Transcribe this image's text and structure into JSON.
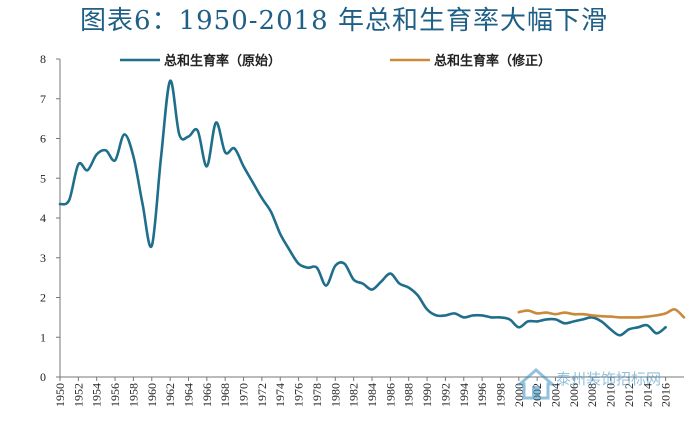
{
  "chart_data": {
    "type": "line",
    "title": "图表6：1950-2018 年总和生育率大幅下滑",
    "xlabel": "",
    "ylabel": "",
    "xlim": [
      1950,
      2018
    ],
    "ylim": [
      0,
      8
    ],
    "yticks": [
      "0",
      "1",
      "2",
      "3",
      "4",
      "5",
      "6",
      "7",
      "8"
    ],
    "xticks": [
      "1950",
      "1952",
      "1954",
      "1956",
      "1958",
      "1960",
      "1962",
      "1964",
      "1966",
      "1968",
      "1970",
      "1972",
      "1974",
      "1976",
      "1978",
      "1980",
      "1982",
      "1984",
      "1986",
      "1988",
      "1990",
      "1992",
      "1994",
      "1996",
      "1998",
      "2000",
      "2002",
      "2004",
      "2006",
      "2008",
      "2010",
      "2012",
      "2014",
      "2016"
    ],
    "grid": false,
    "legend_position": "top",
    "series": [
      {
        "name": "总和生育率（原始）",
        "color": "#1f6e8c",
        "x": [
          1950,
          1951,
          1952,
          1953,
          1954,
          1955,
          1956,
          1957,
          1958,
          1959,
          1960,
          1961,
          1962,
          1963,
          1964,
          1965,
          1966,
          1967,
          1968,
          1969,
          1970,
          1971,
          1972,
          1973,
          1974,
          1975,
          1976,
          1977,
          1978,
          1979,
          1980,
          1981,
          1982,
          1983,
          1984,
          1985,
          1986,
          1987,
          1988,
          1989,
          1990,
          1991,
          1992,
          1993,
          1994,
          1995,
          1996,
          1997,
          1998,
          1999,
          2000,
          2001,
          2002,
          2003,
          2004,
          2005,
          2006,
          2007,
          2008,
          2009,
          2010,
          2011,
          2012,
          2013,
          2014,
          2015,
          2016
        ],
        "y": [
          4.35,
          4.45,
          5.35,
          5.2,
          5.6,
          5.7,
          5.45,
          6.1,
          5.55,
          4.35,
          3.3,
          5.5,
          7.45,
          6.1,
          6.05,
          6.2,
          5.3,
          6.4,
          5.65,
          5.75,
          5.3,
          4.9,
          4.5,
          4.15,
          3.6,
          3.2,
          2.85,
          2.75,
          2.75,
          2.3,
          2.8,
          2.85,
          2.45,
          2.35,
          2.2,
          2.4,
          2.6,
          2.35,
          2.25,
          2.05,
          1.7,
          1.55,
          1.55,
          1.6,
          1.5,
          1.55,
          1.55,
          1.5,
          1.5,
          1.45,
          1.25,
          1.4,
          1.4,
          1.45,
          1.45,
          1.35,
          1.4,
          1.45,
          1.5,
          1.4,
          1.2,
          1.05,
          1.2,
          1.25,
          1.3,
          1.1,
          1.25
        ]
      },
      {
        "name": "总和生育率（修正）",
        "color": "#c98a3a",
        "x": [
          2000,
          2001,
          2002,
          2003,
          2004,
          2005,
          2006,
          2007,
          2008,
          2009,
          2010,
          2011,
          2012,
          2013,
          2014,
          2015,
          2016,
          2017,
          2018
        ],
        "y": [
          1.63,
          1.67,
          1.6,
          1.62,
          1.58,
          1.62,
          1.58,
          1.58,
          1.55,
          1.53,
          1.52,
          1.5,
          1.5,
          1.5,
          1.52,
          1.55,
          1.6,
          1.7,
          1.5
        ]
      }
    ]
  },
  "watermark": {
    "text": "泰州装饰招标网",
    "icon": "house-logo-icon"
  }
}
